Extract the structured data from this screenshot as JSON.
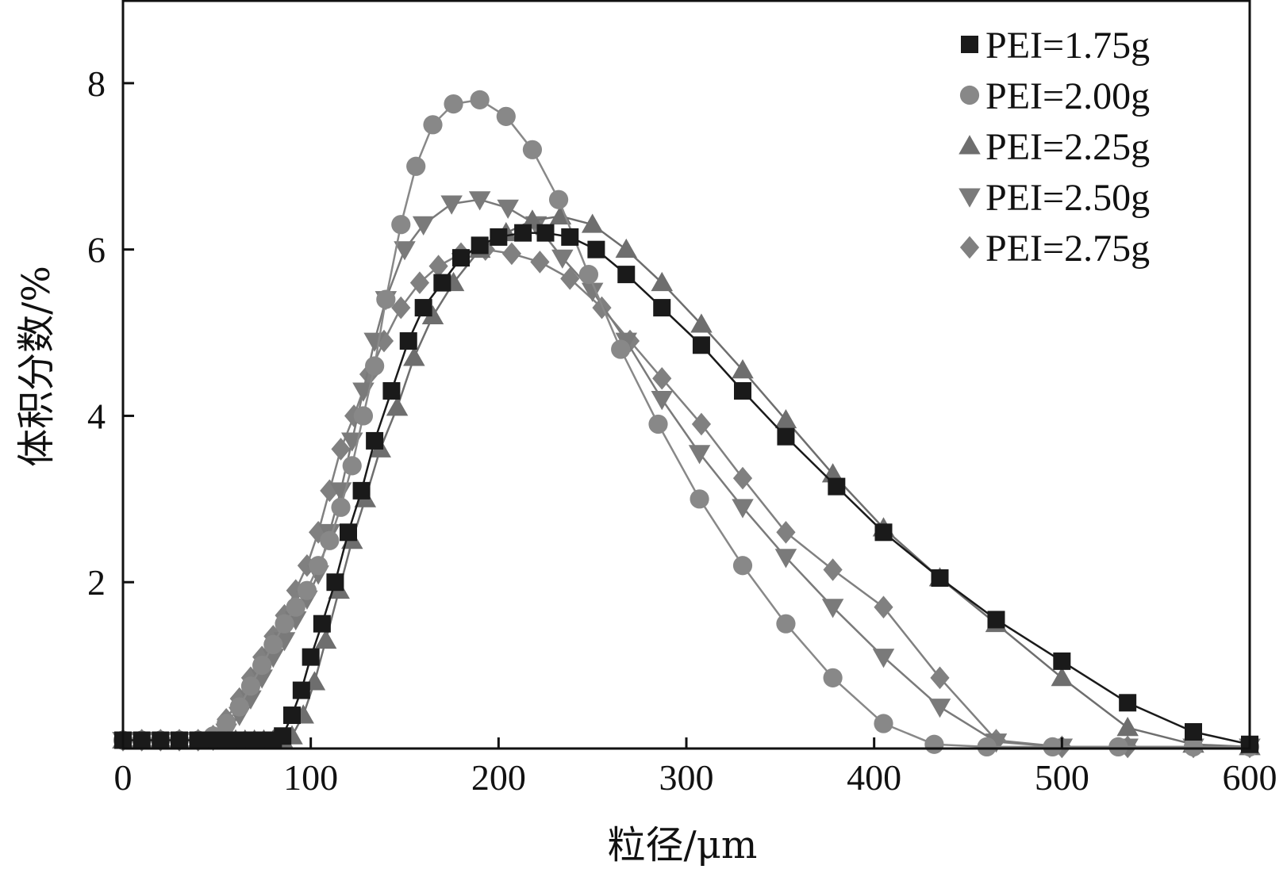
{
  "chart_data": {
    "type": "line",
    "title": "",
    "xlabel": "粒径/μm",
    "ylabel": "体积分数/%",
    "xlim": [
      0,
      600
    ],
    "ylim": [
      0,
      9
    ],
    "xticks": [
      0,
      100,
      200,
      300,
      400,
      500,
      600
    ],
    "xtick_labels": [
      "0",
      "100",
      "200",
      "300",
      "400",
      "500",
      "600"
    ],
    "yticks": [
      2,
      4,
      6,
      8
    ],
    "ytick_labels": [
      "2",
      "4",
      "6",
      "8"
    ],
    "grid": false,
    "legend_position": "top-right",
    "series": [
      {
        "name": "PEI=1.75g",
        "marker": "square",
        "color": "#1a1a1a",
        "x": [
          0,
          10,
          20,
          30,
          40,
          45,
          50,
          55,
          60,
          65,
          70,
          75,
          80,
          85,
          90,
          95,
          100,
          106,
          113,
          120,
          127,
          134,
          143,
          152,
          160,
          170,
          180,
          190,
          200,
          213,
          225,
          238,
          252,
          268,
          287,
          308,
          330,
          353,
          380,
          405,
          435,
          465,
          500,
          535,
          570,
          600
        ],
        "y": [
          0.1,
          0.1,
          0.1,
          0.1,
          0.1,
          0.1,
          0.1,
          0.1,
          0.1,
          0.1,
          0.1,
          0.1,
          0.1,
          0.15,
          0.4,
          0.7,
          1.1,
          1.5,
          2.0,
          2.6,
          3.1,
          3.7,
          4.3,
          4.9,
          5.3,
          5.6,
          5.9,
          6.05,
          6.15,
          6.2,
          6.2,
          6.15,
          6.0,
          5.7,
          5.3,
          4.85,
          4.3,
          3.75,
          3.15,
          2.6,
          2.05,
          1.55,
          1.05,
          0.55,
          0.2,
          0.05
        ]
      },
      {
        "name": "PEI=2.00g",
        "marker": "circle",
        "color": "#888888",
        "x": [
          0,
          10,
          20,
          30,
          40,
          48,
          55,
          62,
          68,
          74,
          80,
          86,
          92,
          98,
          104,
          110,
          116,
          122,
          128,
          134,
          140,
          148,
          156,
          165,
          176,
          190,
          204,
          218,
          232,
          248,
          265,
          285,
          307,
          330,
          353,
          378,
          405,
          432,
          460,
          495,
          530,
          570,
          600
        ],
        "y": [
          0.1,
          0.1,
          0.1,
          0.1,
          0.1,
          0.15,
          0.3,
          0.5,
          0.75,
          1.0,
          1.25,
          1.5,
          1.7,
          1.9,
          2.2,
          2.5,
          2.9,
          3.4,
          4.0,
          4.6,
          5.4,
          6.3,
          7.0,
          7.5,
          7.75,
          7.8,
          7.6,
          7.2,
          6.6,
          5.7,
          4.8,
          3.9,
          3.0,
          2.2,
          1.5,
          0.85,
          0.3,
          0.05,
          0.02,
          0.02,
          0.02,
          0.02,
          0.02
        ]
      },
      {
        "name": "PEI=2.25g",
        "marker": "triangle-up",
        "color": "#6e6e6e",
        "x": [
          0,
          10,
          20,
          30,
          40,
          50,
          55,
          60,
          65,
          70,
          75,
          80,
          85,
          90,
          96,
          102,
          108,
          115,
          122,
          129,
          137,
          146,
          155,
          165,
          176,
          190,
          204,
          218,
          233,
          250,
          268,
          287,
          308,
          330,
          353,
          378,
          405,
          435,
          465,
          500,
          535,
          570,
          600
        ],
        "y": [
          0.1,
          0.1,
          0.1,
          0.1,
          0.1,
          0.1,
          0.1,
          0.1,
          0.1,
          0.1,
          0.1,
          0.1,
          0.1,
          0.15,
          0.4,
          0.8,
          1.3,
          1.9,
          2.5,
          3.0,
          3.6,
          4.1,
          4.7,
          5.2,
          5.6,
          6.0,
          6.2,
          6.35,
          6.4,
          6.3,
          6.0,
          5.6,
          5.1,
          4.55,
          3.95,
          3.3,
          2.65,
          2.05,
          1.5,
          0.85,
          0.25,
          0.05,
          0.02
        ]
      },
      {
        "name": "PEI=2.50g",
        "marker": "triangle-down",
        "color": "#7a7a7a",
        "x": [
          0,
          10,
          20,
          30,
          40,
          48,
          55,
          62,
          68,
          74,
          80,
          86,
          92,
          98,
          104,
          110,
          116,
          122,
          128,
          134,
          140,
          150,
          160,
          175,
          190,
          205,
          220,
          234,
          250,
          268,
          287,
          307,
          330,
          353,
          378,
          405,
          435,
          465,
          500,
          535,
          570,
          600
        ],
        "y": [
          0.1,
          0.1,
          0.1,
          0.1,
          0.1,
          0.1,
          0.2,
          0.4,
          0.6,
          0.85,
          1.1,
          1.3,
          1.55,
          1.8,
          2.1,
          2.6,
          3.1,
          3.7,
          4.3,
          4.9,
          5.4,
          6.0,
          6.3,
          6.55,
          6.6,
          6.5,
          6.3,
          5.9,
          5.5,
          4.9,
          4.2,
          3.55,
          2.9,
          2.3,
          1.7,
          1.1,
          0.5,
          0.08,
          0.02,
          0.02,
          0.02,
          0.02
        ]
      },
      {
        "name": "PEI=2.75g",
        "marker": "diamond",
        "color": "#808080",
        "x": [
          0,
          10,
          20,
          30,
          40,
          48,
          55,
          62,
          68,
          74,
          80,
          86,
          92,
          98,
          104,
          110,
          116,
          123,
          131,
          139,
          148,
          158,
          168,
          180,
          193,
          207,
          222,
          238,
          255,
          270,
          287,
          308,
          330,
          353,
          378,
          405,
          435,
          465,
          500,
          535,
          570,
          600
        ],
        "y": [
          0.1,
          0.1,
          0.1,
          0.1,
          0.1,
          0.15,
          0.35,
          0.6,
          0.85,
          1.1,
          1.35,
          1.6,
          1.9,
          2.2,
          2.6,
          3.1,
          3.6,
          4.0,
          4.5,
          4.9,
          5.3,
          5.6,
          5.8,
          5.95,
          6.0,
          5.95,
          5.85,
          5.65,
          5.3,
          4.9,
          4.45,
          3.9,
          3.25,
          2.6,
          2.15,
          1.7,
          0.85,
          0.1,
          0.02,
          0.02,
          0.02,
          0.02
        ]
      }
    ]
  }
}
